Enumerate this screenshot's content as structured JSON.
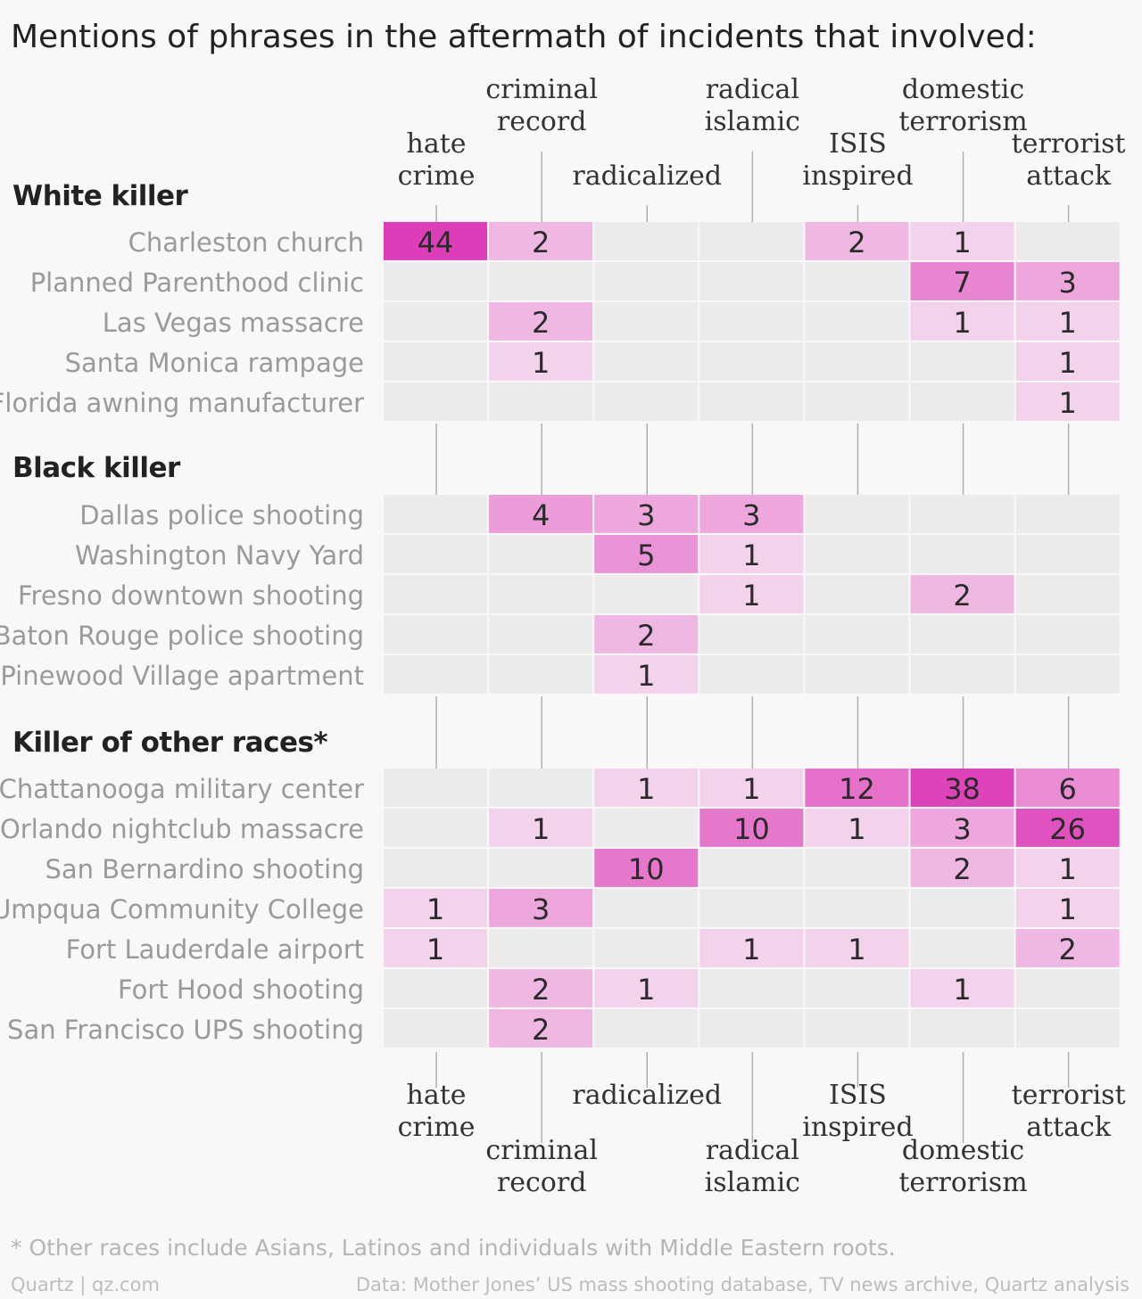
{
  "title": "Mentions of phrases in the aftermath of incidents that involved:",
  "footnote": "* Other races include Asians, Latinos and individuals with Middle Eastern roots.",
  "credit_left": "Quartz | qz.com",
  "credit_right": "Data: Mother Jones’ US mass shooting database, TV news archive, Quartz analysis",
  "colors": {
    "empty_cell": "#ebebeb",
    "low": "#f3d3ec",
    "high": "#dd3db8",
    "background": "#f8f8f8"
  },
  "chart_data": {
    "type": "heatmap",
    "columns": [
      [
        "hate",
        "crime"
      ],
      [
        "criminal",
        "record"
      ],
      [
        "radicalized"
      ],
      [
        "radical",
        "islamic"
      ],
      [
        "ISIS",
        "inspired"
      ],
      [
        "domestic",
        "terrorism"
      ],
      [
        "terrorist",
        "attack"
      ]
    ],
    "groups": [
      {
        "name": "White killer",
        "rows": [
          {
            "label": "Charleston church",
            "values": [
              44,
              2,
              null,
              null,
              2,
              1,
              null
            ]
          },
          {
            "label": "Planned Parenthood clinic",
            "values": [
              null,
              null,
              null,
              null,
              null,
              7,
              3
            ]
          },
          {
            "label": "Las Vegas massacre",
            "values": [
              null,
              2,
              null,
              null,
              null,
              1,
              1
            ]
          },
          {
            "label": "Santa Monica rampage",
            "values": [
              null,
              1,
              null,
              null,
              null,
              null,
              1
            ]
          },
          {
            "label": "Florida awning manufacturer",
            "values": [
              null,
              null,
              null,
              null,
              null,
              null,
              1
            ]
          }
        ]
      },
      {
        "name": "Black killer",
        "rows": [
          {
            "label": "Dallas police shooting",
            "values": [
              null,
              4,
              3,
              3,
              null,
              null,
              null
            ]
          },
          {
            "label": "Washington Navy Yard",
            "values": [
              null,
              null,
              5,
              1,
              null,
              null,
              null
            ]
          },
          {
            "label": "Fresno downtown shooting",
            "values": [
              null,
              null,
              null,
              1,
              null,
              2,
              null
            ]
          },
          {
            "label": "Baton Rouge police shooting",
            "values": [
              null,
              null,
              2,
              null,
              null,
              null,
              null
            ]
          },
          {
            "label": "Pinewood Village apartment",
            "values": [
              null,
              null,
              1,
              null,
              null,
              null,
              null
            ]
          }
        ]
      },
      {
        "name": "Killer of other races*",
        "rows": [
          {
            "label": "Chattanooga military center",
            "values": [
              null,
              null,
              1,
              1,
              12,
              38,
              6
            ]
          },
          {
            "label": "Orlando nightclub massacre",
            "values": [
              null,
              1,
              null,
              10,
              1,
              3,
              26
            ]
          },
          {
            "label": "San Bernardino shooting",
            "values": [
              null,
              null,
              10,
              null,
              null,
              2,
              1
            ]
          },
          {
            "label": "Umpqua Community College",
            "values": [
              1,
              3,
              null,
              null,
              null,
              null,
              1
            ]
          },
          {
            "label": "Fort Lauderdale airport",
            "values": [
              1,
              null,
              null,
              1,
              1,
              null,
              2
            ]
          },
          {
            "label": "Fort Hood shooting",
            "values": [
              null,
              2,
              1,
              null,
              null,
              1,
              null
            ]
          },
          {
            "label": "San Francisco UPS shooting",
            "values": [
              null,
              2,
              null,
              null,
              null,
              null,
              null
            ]
          }
        ]
      }
    ]
  }
}
